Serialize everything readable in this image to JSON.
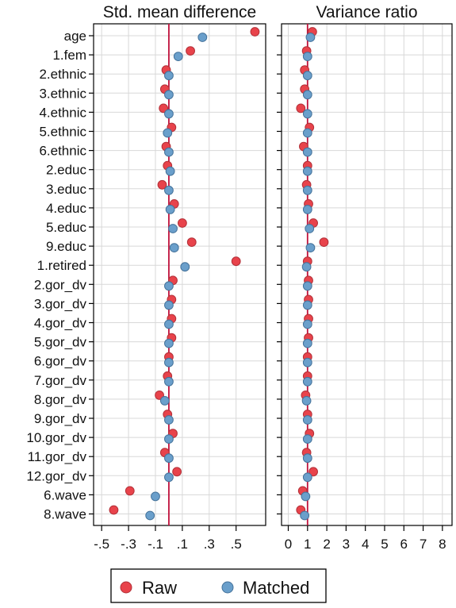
{
  "chart_data": [
    {
      "type": "scatter",
      "title": "Std. mean difference",
      "xticks": [
        "-.5",
        "-.3",
        "-.1",
        ".1",
        ".3",
        ".5"
      ],
      "xtick_values": [
        -0.5,
        -0.3,
        -0.1,
        0.1,
        0.3,
        0.5
      ],
      "xlim": [
        -0.56,
        0.72
      ],
      "reference_line": 0,
      "categories": [
        "age",
        "1.fem",
        "2.ethnic",
        "3.ethnic",
        "4.ethnic",
        "5.ethnic",
        "6.ethnic",
        "2.educ",
        "3.educ",
        "4.educ",
        "5.educ",
        "9.educ",
        "1.retired",
        "2.gor_dv",
        "3.gor_dv",
        "4.gor_dv",
        "5.gor_dv",
        "6.gor_dv",
        "7.gor_dv",
        "8.gor_dv",
        "9.gor_dv",
        "10.gor_dv",
        "11.gor_dv",
        "12.gor_dv",
        "6.wave",
        "8.wave"
      ],
      "series": [
        {
          "name": "Raw",
          "values": [
            0.64,
            0.16,
            -0.02,
            -0.03,
            -0.04,
            0.02,
            -0.02,
            -0.01,
            -0.05,
            0.04,
            0.1,
            0.17,
            0.5,
            0.03,
            0.02,
            0.02,
            0.02,
            0.0,
            -0.01,
            -0.07,
            -0.01,
            0.03,
            -0.03,
            0.06,
            -0.29,
            -0.41
          ]
        },
        {
          "name": "Matched",
          "values": [
            0.25,
            0.07,
            0.0,
            0.0,
            0.0,
            -0.01,
            0.0,
            0.01,
            0.0,
            0.01,
            0.03,
            0.04,
            0.12,
            0.0,
            0.0,
            0.0,
            0.0,
            0.0,
            0.0,
            -0.03,
            0.0,
            0.0,
            0.0,
            0.0,
            -0.1,
            -0.14
          ]
        }
      ]
    },
    {
      "type": "scatter",
      "title": "Variance ratio",
      "xticks": [
        "0",
        "1",
        "2",
        "3",
        "4",
        "5",
        "6",
        "7",
        "8"
      ],
      "xtick_values": [
        0,
        1,
        2,
        3,
        4,
        5,
        6,
        7,
        8
      ],
      "xlim": [
        -0.35,
        8.5
      ],
      "reference_line": 1,
      "categories": [
        "age",
        "1.fem",
        "2.ethnic",
        "3.ethnic",
        "4.ethnic",
        "5.ethnic",
        "6.ethnic",
        "2.educ",
        "3.educ",
        "4.educ",
        "5.educ",
        "9.educ",
        "1.retired",
        "2.gor_dv",
        "3.gor_dv",
        "4.gor_dv",
        "5.gor_dv",
        "6.gor_dv",
        "7.gor_dv",
        "8.gor_dv",
        "9.gor_dv",
        "10.gor_dv",
        "11.gor_dv",
        "12.gor_dv",
        "6.wave",
        "8.wave"
      ],
      "series": [
        {
          "name": "Raw",
          "values": [
            1.25,
            0.95,
            0.85,
            0.85,
            0.65,
            1.1,
            0.8,
            1.0,
            0.95,
            1.05,
            1.3,
            1.85,
            1.0,
            1.05,
            1.05,
            1.05,
            1.05,
            1.0,
            1.0,
            0.9,
            1.0,
            1.1,
            0.95,
            1.3,
            0.75,
            0.65
          ]
        },
        {
          "name": "Matched",
          "values": [
            1.15,
            1.0,
            1.0,
            1.0,
            1.0,
            1.0,
            1.0,
            1.0,
            1.0,
            1.0,
            1.1,
            1.15,
            0.95,
            1.0,
            1.0,
            1.0,
            1.0,
            1.0,
            1.0,
            0.95,
            1.0,
            1.0,
            1.0,
            1.0,
            0.9,
            0.85
          ]
        }
      ]
    }
  ],
  "legend": {
    "items": [
      {
        "label": "Raw"
      },
      {
        "label": "Matched"
      }
    ]
  },
  "colors": {
    "raw": "#e8434b",
    "matched": "#6a9fcb",
    "refline": "#c0123c",
    "grid": "#d8d8d8"
  }
}
